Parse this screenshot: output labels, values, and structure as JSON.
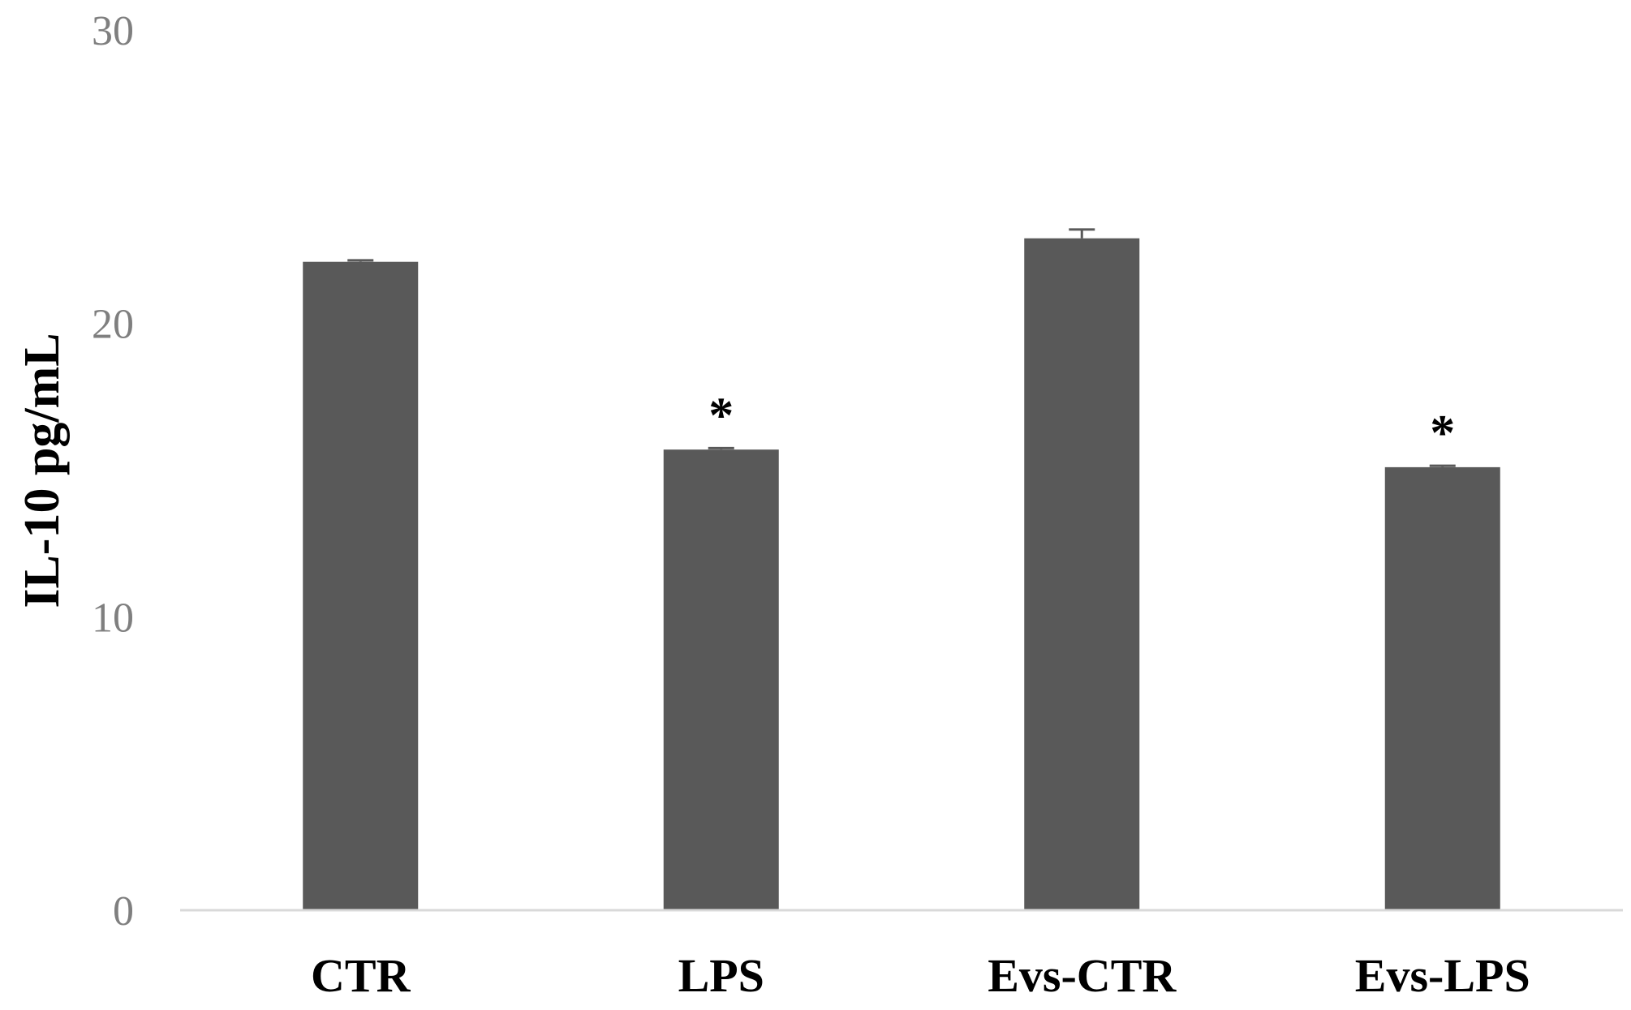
{
  "chart_data": {
    "type": "bar",
    "title": "",
    "xlabel": "",
    "ylabel": "IL-10 pg/mL",
    "ylim": [
      0,
      30
    ],
    "yticks": [
      0,
      10,
      20,
      30
    ],
    "grid": false,
    "categories": [
      "CTR",
      "LPS",
      "Evs-CTR",
      "Evs-LPS"
    ],
    "values": [
      22.1,
      15.7,
      22.9,
      15.1
    ],
    "errors": [
      0.05,
      0.05,
      0.3,
      0.05
    ],
    "annotations": [
      "",
      "*",
      "",
      "*"
    ],
    "colors": {
      "bar": "#595959",
      "axis": "#d9d9d9",
      "tick_text": "#7f7f7f",
      "label_text": "#000000"
    }
  }
}
